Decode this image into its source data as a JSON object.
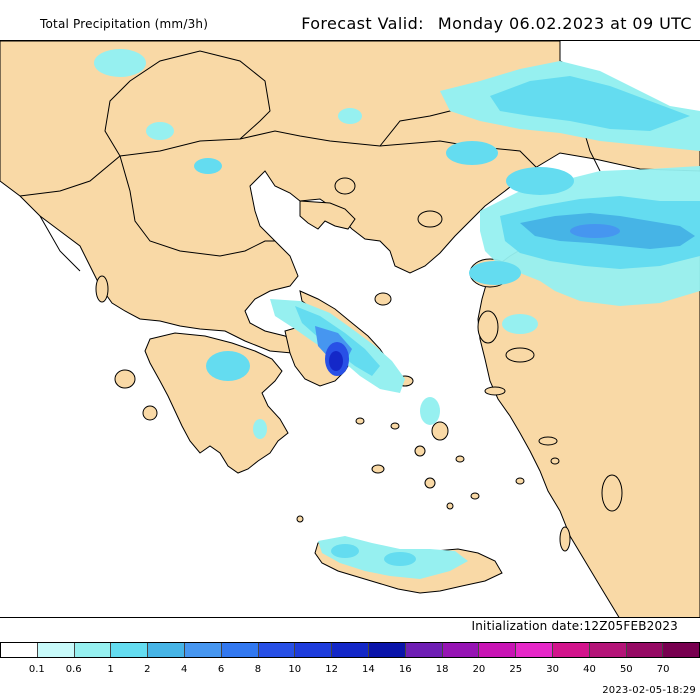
{
  "header": {
    "title": "Total Precipitation (mm/3h)",
    "valid_label": "Forecast Valid:",
    "valid_time": "Monday 06.02.2023 at 09 UTC"
  },
  "footer": {
    "initialization": "Initialization date:12Z05FEB2023",
    "generated": "2023-02-05-18:29"
  },
  "colors": {
    "land": "#f9d9a6",
    "sea": "#ffffff",
    "border": "#000000"
  },
  "legend": {
    "ticks": [
      "0.1",
      "0.6",
      "1",
      "2",
      "4",
      "6",
      "8",
      "10",
      "12",
      "14",
      "16",
      "18",
      "20",
      "25",
      "30",
      "40",
      "50",
      "70"
    ],
    "colors": [
      "#ffffff",
      "#c8fafa",
      "#96f0f0",
      "#64dcf0",
      "#46b4e6",
      "#4696f0",
      "#3278f0",
      "#2850e6",
      "#1e3cdc",
      "#1428c8",
      "#0a14aa",
      "#6e1eb4",
      "#9614b4",
      "#c814b4",
      "#e628c8",
      "#d2148c",
      "#b41478",
      "#960a64",
      "#780050"
    ]
  }
}
